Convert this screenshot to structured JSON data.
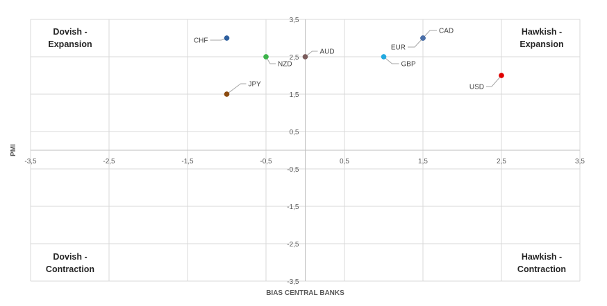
{
  "chart_data": {
    "type": "scatter",
    "xlabel": "BIAS CENTRAL BANKS",
    "ylabel": "PMI",
    "xlim": [
      -3.5,
      3.5
    ],
    "ylim": [
      -3.5,
      3.5
    ],
    "x_ticks": [
      "-3,5",
      "-2,5",
      "-1,5",
      "-0,5",
      "0,5",
      "1,5",
      "2,5",
      "3,5"
    ],
    "y_ticks": [
      "3,5",
      "2,5",
      "1,5",
      "0,5",
      "-0,5",
      "-1,5",
      "-2,5",
      "-3,5"
    ],
    "grid": true,
    "quadrants": {
      "top_left": [
        "Dovish -",
        "Expansion"
      ],
      "top_right": [
        "Hawkish -",
        "Expansion"
      ],
      "bottom_left": [
        "Dovish -",
        "Contraction"
      ],
      "bottom_right": [
        "Hawkish -",
        "Contraction"
      ]
    },
    "points": [
      {
        "label": "CHF",
        "x": -1.0,
        "y": 3.0,
        "color": "#2e5f9e"
      },
      {
        "label": "NZD",
        "x": -0.5,
        "y": 2.5,
        "color": "#3cb34a"
      },
      {
        "label": "JPY",
        "x": -1.0,
        "y": 1.5,
        "color": "#8b4a0f"
      },
      {
        "label": "AUD",
        "x": 0.0,
        "y": 2.5,
        "color": "#7a5c5c"
      },
      {
        "label": "CAD",
        "x": 1.5,
        "y": 3.0,
        "color": "#4a6fa8"
      },
      {
        "label": "EUR",
        "x": 1.5,
        "y": 3.0,
        "color": "#4a6fa8"
      },
      {
        "label": "GBP",
        "x": 1.0,
        "y": 2.5,
        "color": "#22a9e0"
      },
      {
        "label": "USD",
        "x": 2.5,
        "y": 2.0,
        "color": "#e00000"
      }
    ]
  }
}
